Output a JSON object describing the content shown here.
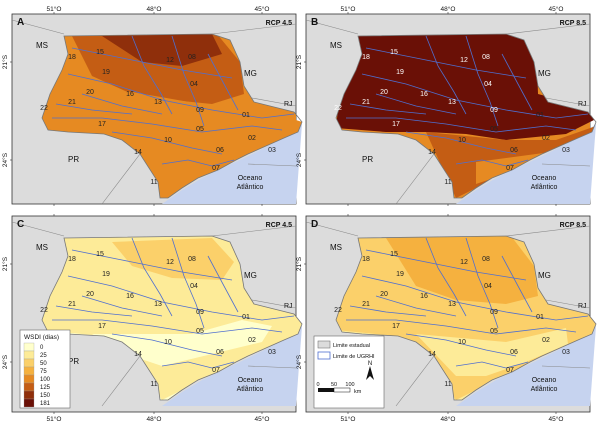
{
  "panels": [
    {
      "letter": "A",
      "scenario": "RCP 4.5",
      "level": "high45"
    },
    {
      "letter": "B",
      "scenario": "RCP 8.5",
      "level": "extreme"
    },
    {
      "letter": "C",
      "scenario": "RCP 4.5",
      "level": "low"
    },
    {
      "letter": "D",
      "scenario": "RCP 8.5",
      "level": "mid"
    }
  ],
  "regions": {
    "ms": "MS",
    "mg": "MG",
    "pr": "PR",
    "rj": "RJ",
    "ocean_line1": "Oceano",
    "ocean_line2": "Atlântico"
  },
  "ugrhi_labels": [
    "15",
    "18",
    "12",
    "08",
    "19",
    "04",
    "20",
    "16",
    "21",
    "13",
    "22",
    "17",
    "09",
    "01",
    "05",
    "10",
    "02",
    "14",
    "06",
    "03",
    "07",
    "11"
  ],
  "axis": {
    "lon_ticks": [
      "51°O",
      "48°O",
      "45°O"
    ],
    "lat_ticks": [
      "21°S",
      "24°S"
    ]
  },
  "legend": {
    "title": "WSDI (dias)",
    "classes": [
      {
        "label": "0",
        "color": "#ffffcc"
      },
      {
        "label": "25",
        "color": "#fdeb98"
      },
      {
        "label": "50",
        "color": "#fbd06a"
      },
      {
        "label": "75",
        "color": "#f5b13f"
      },
      {
        "label": "100",
        "color": "#e68a22"
      },
      {
        "label": "125",
        "color": "#c45d14"
      },
      {
        "label": "150",
        "color": "#8f2f0b"
      },
      {
        "label": "181",
        "color": "#6a1006"
      }
    ]
  },
  "map_legend": {
    "state_limit": "Limite estadual",
    "ugrhi_limit": "Limite de UGRHI",
    "scale_ticks": [
      "0",
      "50",
      "100"
    ],
    "scale_unit": "km",
    "north": "N"
  },
  "colors": {
    "land": "#dcdcdc",
    "ocean": "#c6d3ef",
    "river": "#4f6fd0",
    "outline": "#888888"
  }
}
